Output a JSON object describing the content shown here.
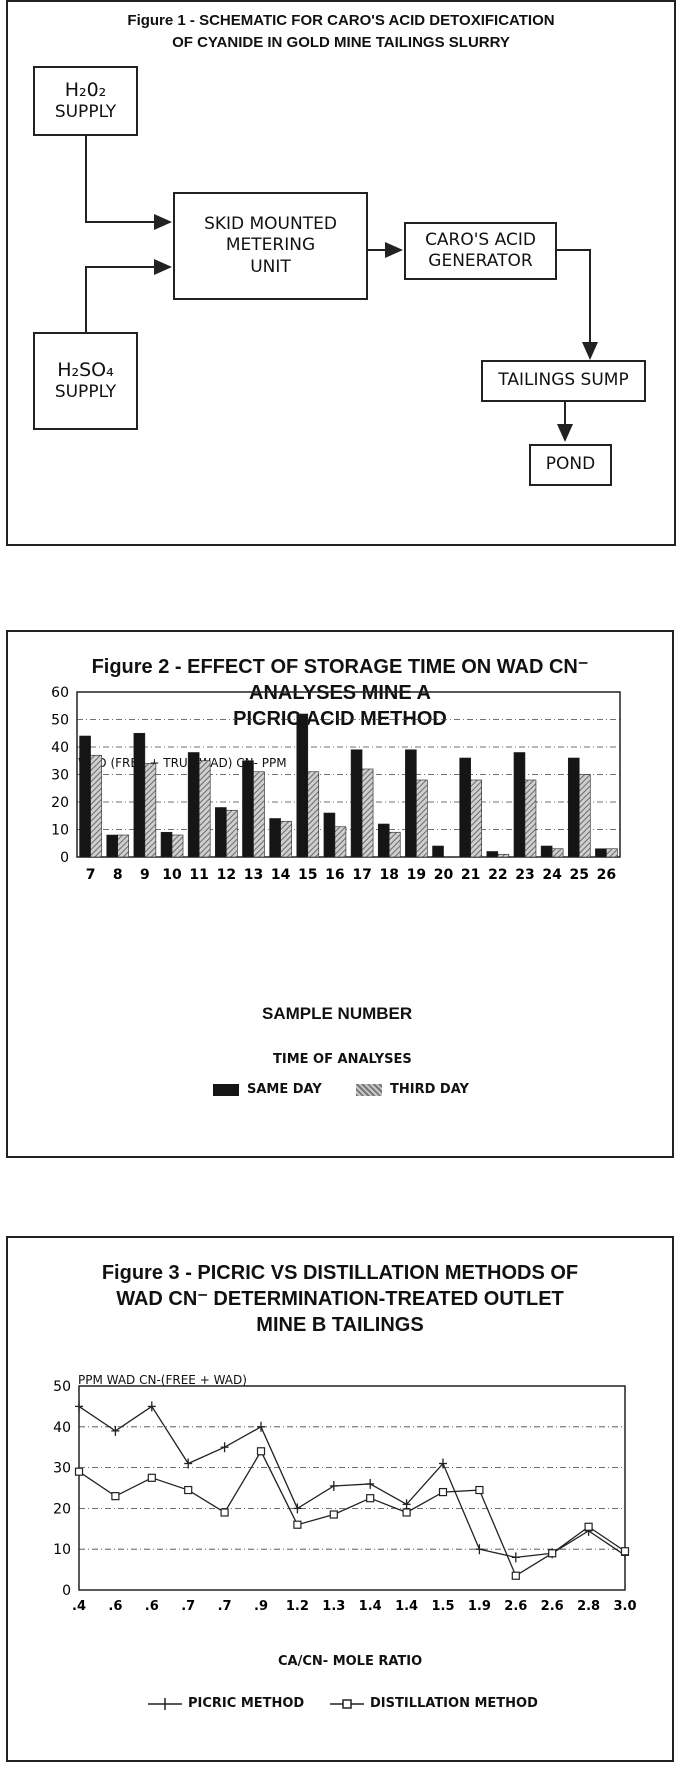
{
  "figure1": {
    "title_line1": "Figure 1 - SCHEMATIC FOR CARO'S ACID DETOXIFICATION",
    "title_line2": "OF CYANIDE IN GOLD MINE TAILINGS SLURRY",
    "h2o2_line1": "H₂0₂",
    "h2o2_line2": "SUPPLY",
    "h2so4_line1": "H₂SO₄",
    "h2so4_line2": "SUPPLY",
    "metering": "SKID MOUNTED\nMETERING\nUNIT",
    "generator": "CARO'S ACID\nGENERATOR",
    "sump": "TAILINGS SUMP",
    "pond": "POND"
  },
  "figure2": {
    "title_line1": "Figure 2 - EFFECT OF STORAGE TIME ON WAD CN⁻",
    "title_line2": "ANALYSES MINE A",
    "title_line3": "PICRIC ACID METHOD",
    "legend_title": "TIME OF ANALYSES",
    "colors": {
      "same": "#151515",
      "third": "#9a9a9a"
    }
  },
  "figure3": {
    "title_line1": "Figure 3 - PICRIC VS DISTILLATION METHODS OF",
    "title_line2": "WAD CN⁻ DETERMINATION-TREATED OUTLET",
    "title_line3": "MINE B TAILINGS"
  },
  "chart_data": [
    {
      "type": "bar",
      "ylabel": "WAD (FREE + TRUE WAD) CN- PPM",
      "xlabel": "SAMPLE NUMBER",
      "ylim": [
        0,
        60
      ],
      "yticks": [
        0,
        10,
        20,
        30,
        40,
        50,
        60
      ],
      "grid": true,
      "legend": "bottom",
      "categories": [
        "7",
        "8",
        "9",
        "10",
        "11",
        "12",
        "13",
        "14",
        "15",
        "16",
        "17",
        "18",
        "19",
        "20",
        "21",
        "22",
        "23",
        "24",
        "25",
        "26"
      ],
      "series": [
        {
          "name": "SAME DAY",
          "values": [
            44,
            8,
            45,
            9,
            38,
            18,
            35,
            14,
            52,
            16,
            39,
            12,
            39,
            4,
            36,
            2,
            38,
            4,
            36,
            3
          ]
        },
        {
          "name": "THIRD DAY",
          "values": [
            37,
            8,
            34,
            8,
            35,
            17,
            31,
            13,
            31,
            11,
            32,
            9,
            28,
            0,
            28,
            1,
            28,
            3,
            30,
            3
          ]
        }
      ]
    },
    {
      "type": "line",
      "ylabel": "PPM WAD CN-(FREE + WAD)",
      "xlabel": "CA/CN- MOLE RATIO",
      "ylim": [
        0,
        50
      ],
      "yticks": [
        0,
        10,
        20,
        30,
        40,
        50
      ],
      "grid": true,
      "legend": "bottom",
      "categories": [
        ".4",
        ".6",
        ".6",
        ".7",
        ".7",
        ".9",
        "1.2",
        "1.3",
        "1.4",
        "1.4",
        "1.5",
        "1.9",
        "2.6",
        "2.6",
        "2.8",
        "3.0"
      ],
      "series": [
        {
          "name": "PICRIC METHOD",
          "values": [
            45,
            39,
            45,
            31,
            35,
            40,
            20,
            25.5,
            26,
            21,
            31,
            10,
            8,
            9,
            14.5,
            8.5
          ]
        },
        {
          "name": "DISTILLATION METHOD",
          "values": [
            29,
            23,
            27.5,
            24.5,
            19,
            34,
            16,
            18.5,
            22.5,
            19,
            24,
            24.5,
            3.5,
            9,
            15.5,
            9.5
          ]
        }
      ]
    }
  ]
}
